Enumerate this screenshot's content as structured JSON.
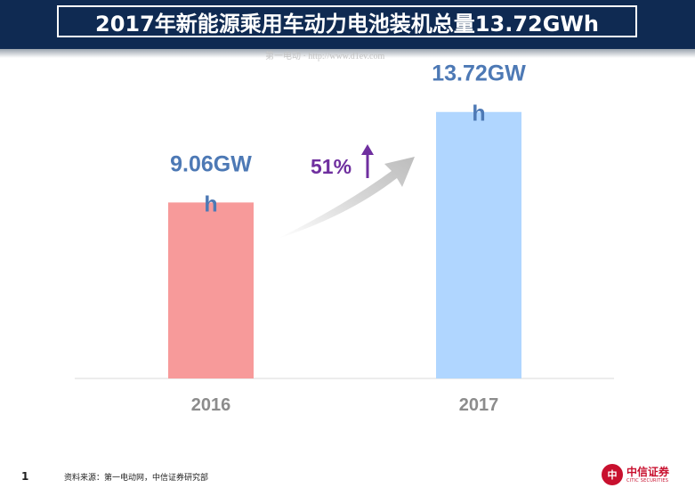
{
  "header": {
    "title": "2017年新能源乘用车动力电池装机总量13.72GWh",
    "watermark": "第一电动 · http://www.d1ev.com"
  },
  "chart_data": {
    "type": "bar",
    "categories": [
      "2016",
      "2017"
    ],
    "values": [
      9.06,
      13.72
    ],
    "data_labels": [
      [
        "9.06GW",
        "h"
      ],
      [
        "13.72GW",
        "h"
      ]
    ],
    "bar_colors": [
      "#f79a9a",
      "#b0d6ff"
    ],
    "ylim": [
      0,
      16
    ],
    "growth_label": "51%",
    "label_color": "#4d79b5",
    "growth_color": "#6f2f9f",
    "axis_label_color": "#8c8c8c"
  },
  "footer": {
    "page_number": "1",
    "source": "资料来源：第一电动网，中信证券研究部",
    "logo_mark": "中",
    "logo_cn": "中信证券",
    "logo_en": "CITIC SECURITIES"
  }
}
